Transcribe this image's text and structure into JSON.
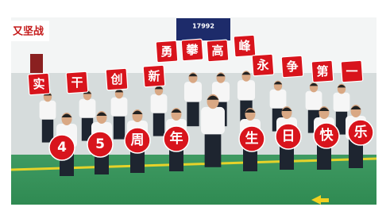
{
  "banner": "又坚战",
  "screen": "17992",
  "signs": {
    "top_row": [
      "勇",
      "攀",
      "高",
      "峰"
    ],
    "middle_row": [
      "实",
      "干",
      "创",
      "新",
      "永",
      "争",
      "第",
      "一"
    ],
    "bottom_row": [
      "4",
      "5",
      "周",
      "年",
      "生",
      "日",
      "快",
      "乐"
    ]
  }
}
